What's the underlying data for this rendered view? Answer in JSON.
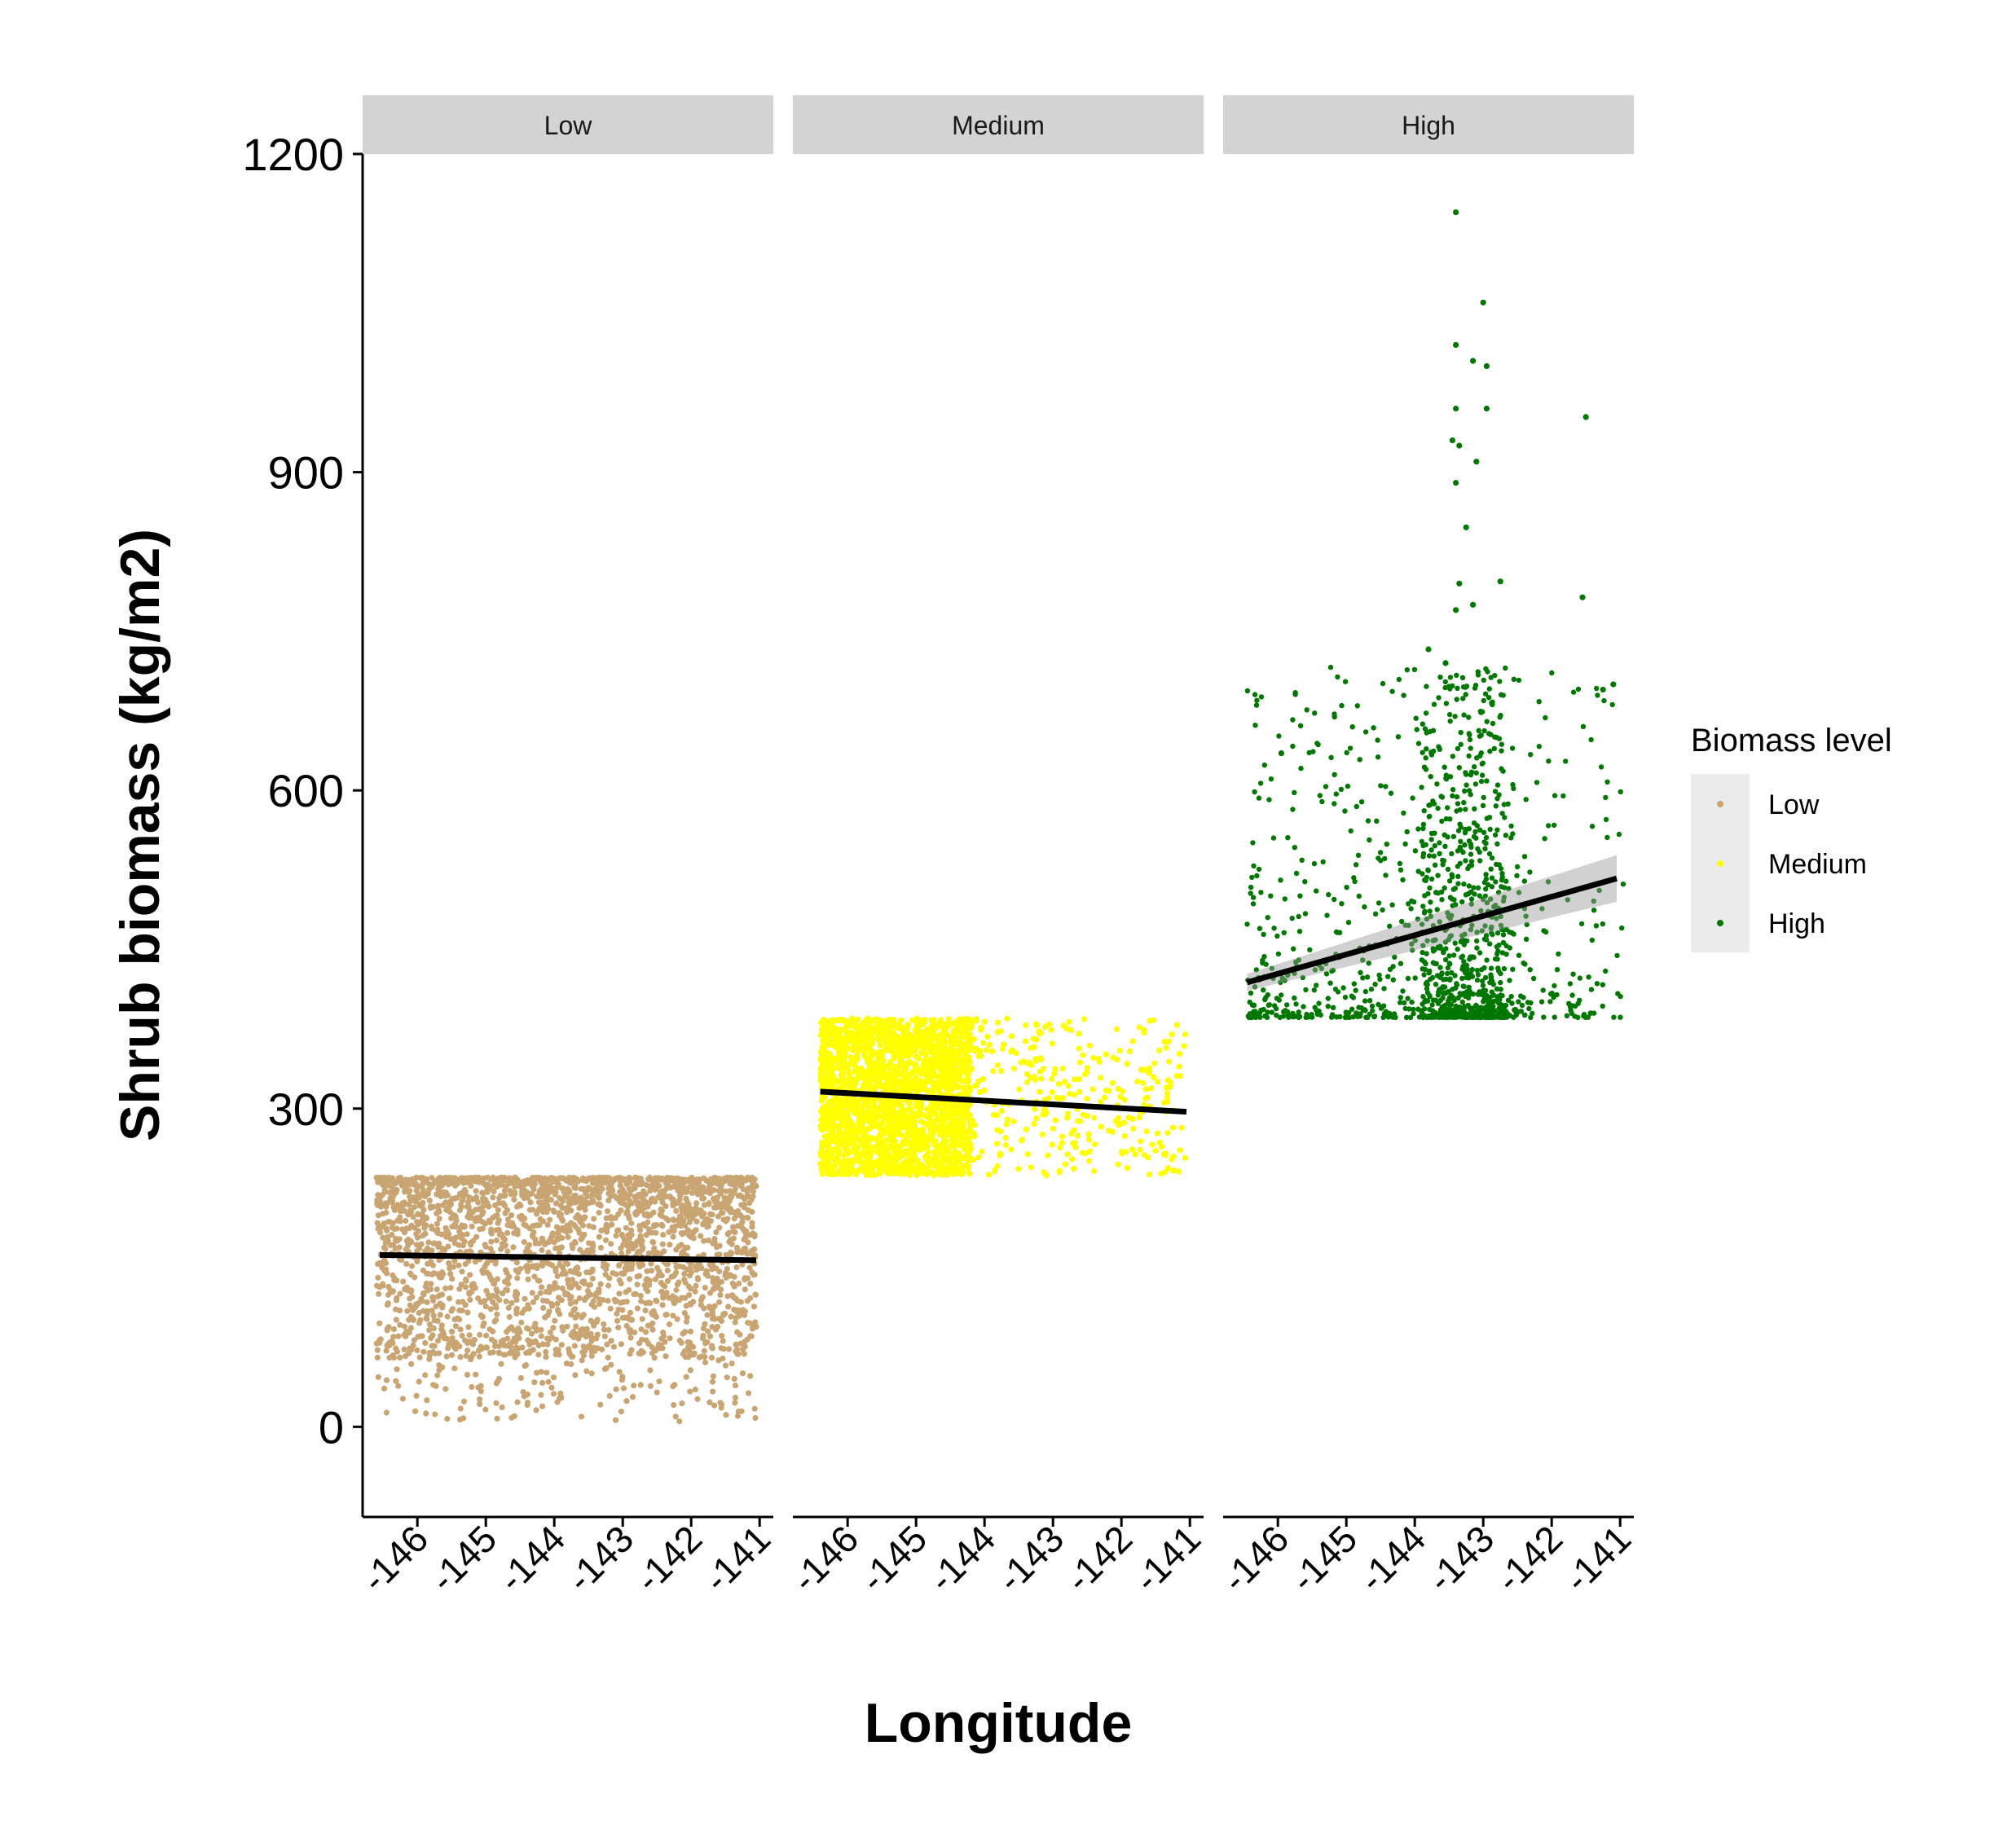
{
  "chart_data": {
    "type": "scatter",
    "facets": [
      "Low",
      "Medium",
      "High"
    ],
    "xlabel": "Longitude",
    "ylabel": "Shrub biomass (kg/m2)",
    "ylim": [
      -85,
      1200
    ],
    "xlim": [
      -146.8,
      -140.8
    ],
    "y_ticks": [
      "0",
      "300",
      "600",
      "900",
      "1200"
    ],
    "y_tick_values": [
      0,
      300,
      600,
      900,
      1200
    ],
    "x_ticks": [
      "-146",
      "-145",
      "-144",
      "-143",
      "-142",
      "-141"
    ],
    "x_tick_values": [
      -146,
      -145,
      -144,
      -143,
      -142,
      -141
    ],
    "legend": {
      "title": "Biomass level",
      "placement": "right",
      "entries": [
        "Low",
        "Medium",
        "High"
      ]
    },
    "series": [
      {
        "name": "Low",
        "color": "#C8A573",
        "y_range": [
          5,
          235
        ],
        "x_range": [
          -146.6,
          -141.05
        ],
        "trend": {
          "x": [
            -146.55,
            -141.05
          ],
          "y": [
            162,
            157
          ]
        }
      },
      {
        "name": "Medium",
        "color": "#FFFF00",
        "y_range": [
          237,
          385
        ],
        "x_range": [
          -146.4,
          -141.05
        ],
        "trend": {
          "x": [
            -146.4,
            -141.05
          ],
          "y": [
            316,
            297
          ]
        }
      },
      {
        "name": "High",
        "color": "#007700",
        "y_range": [
          386,
          1145
        ],
        "x_range": [
          -146.45,
          -140.95
        ],
        "trend": {
          "x": [
            -146.45,
            -141.05
          ],
          "y": [
            419,
            517
          ]
        },
        "outliers": [
          {
            "x": -143.4,
            "y": 1145
          },
          {
            "x": -143.0,
            "y": 1060
          },
          {
            "x": -143.4,
            "y": 1020
          },
          {
            "x": -143.15,
            "y": 1005
          },
          {
            "x": -142.95,
            "y": 1000
          },
          {
            "x": -143.4,
            "y": 960
          },
          {
            "x": -142.95,
            "y": 960
          },
          {
            "x": -141.5,
            "y": 952
          },
          {
            "x": -143.45,
            "y": 930
          },
          {
            "x": -143.35,
            "y": 925
          },
          {
            "x": -143.1,
            "y": 910
          },
          {
            "x": -143.4,
            "y": 890
          },
          {
            "x": -143.25,
            "y": 848
          },
          {
            "x": -142.75,
            "y": 797
          },
          {
            "x": -143.35,
            "y": 795
          },
          {
            "x": -143.4,
            "y": 770
          },
          {
            "x": -143.15,
            "y": 775
          },
          {
            "x": -141.55,
            "y": 782
          },
          {
            "x": -143.8,
            "y": 733
          },
          {
            "x": -143.55,
            "y": 720
          },
          {
            "x": -141.1,
            "y": 700
          },
          {
            "x": -141.25,
            "y": 695
          },
          {
            "x": -145.95,
            "y": 635
          }
        ]
      }
    ]
  }
}
